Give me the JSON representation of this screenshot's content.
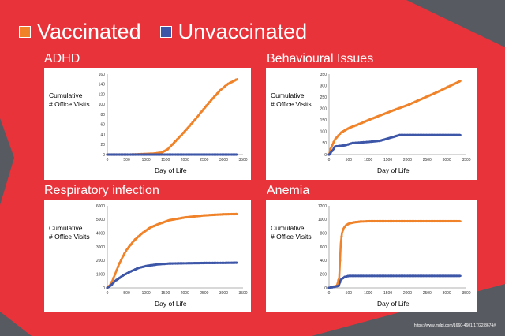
{
  "legend": [
    {
      "label": "Vaccinated",
      "color": "#f0832a"
    },
    {
      "label": "Unvaccinated",
      "color": "#3d56a8"
    }
  ],
  "source": "https://www.mdpi.com/1660-4601/17/22/8674#",
  "colors": {
    "red": "#e8333b",
    "gray": "#575a60",
    "vaccinated": "#f0832a",
    "unvaccinated": "#3d56a8"
  },
  "chart_data": [
    {
      "type": "scatter",
      "title": "ADHD",
      "ylabel": "Cumulative\n# Office Visits",
      "xlabel": "Day of Life",
      "xlim": [
        0,
        3500
      ],
      "xticks": [
        0,
        500,
        1000,
        1500,
        2000,
        2500,
        3000,
        3500
      ],
      "ylim": [
        0,
        160
      ],
      "yticks": [
        0,
        20,
        40,
        60,
        80,
        100,
        120,
        140,
        160
      ],
      "series": [
        {
          "name": "Vaccinated",
          "x": [
            0,
            600,
            900,
            1200,
            1400,
            1550,
            1700,
            1900,
            2100,
            2300,
            2500,
            2700,
            2900,
            3100,
            3350
          ],
          "y": [
            0,
            0,
            1,
            2,
            4,
            10,
            22,
            38,
            55,
            73,
            92,
            110,
            127,
            140,
            150
          ]
        },
        {
          "name": "Unvaccinated",
          "x": [
            0,
            3350
          ],
          "y": [
            0,
            0
          ]
        }
      ]
    },
    {
      "type": "scatter",
      "title": "Behavioural Issues",
      "ylabel": "Cumulative\n# Office Visits",
      "xlabel": "Day of Life",
      "xlim": [
        0,
        3500
      ],
      "xticks": [
        0,
        500,
        1000,
        1500,
        2000,
        2500,
        3000,
        3500
      ],
      "ylim": [
        0,
        350
      ],
      "yticks": [
        0,
        50,
        100,
        150,
        200,
        250,
        300,
        350
      ],
      "series": [
        {
          "name": "Vaccinated",
          "x": [
            0,
            50,
            150,
            300,
            500,
            800,
            1000,
            1300,
            1600,
            2000,
            2400,
            2800,
            3100,
            3350
          ],
          "y": [
            0,
            30,
            65,
            95,
            115,
            135,
            150,
            170,
            190,
            215,
            245,
            275,
            300,
            320
          ]
        },
        {
          "name": "Unvaccinated",
          "x": [
            0,
            100,
            150,
            400,
            600,
            1000,
            1300,
            1500,
            1800,
            3350
          ],
          "y": [
            0,
            20,
            35,
            40,
            50,
            55,
            60,
            70,
            85,
            85
          ]
        }
      ]
    },
    {
      "type": "scatter",
      "title": "Respiratory infection",
      "ylabel": "Cumulative\n# Office Visits",
      "xlabel": "Day of Life",
      "xlim": [
        0,
        3500
      ],
      "xticks": [
        0,
        500,
        1000,
        1500,
        2000,
        2500,
        3000,
        3500
      ],
      "ylim": [
        0,
        6000
      ],
      "yticks": [
        0,
        1000,
        2000,
        3000,
        4000,
        5000,
        6000
      ],
      "series": [
        {
          "name": "Vaccinated",
          "x": [
            0,
            100,
            200,
            300,
            400,
            500,
            700,
            900,
            1100,
            1300,
            1600,
            2000,
            2500,
            3000,
            3350
          ],
          "y": [
            0,
            300,
            1000,
            1700,
            2300,
            2800,
            3500,
            4000,
            4400,
            4650,
            4950,
            5150,
            5300,
            5380,
            5400
          ]
        },
        {
          "name": "Unvaccinated",
          "x": [
            0,
            100,
            200,
            400,
            600,
            800,
            1000,
            1300,
            1600,
            2000,
            2500,
            3000,
            3350
          ],
          "y": [
            0,
            200,
            500,
            900,
            1200,
            1450,
            1600,
            1720,
            1780,
            1800,
            1820,
            1830,
            1840
          ]
        }
      ]
    },
    {
      "type": "scatter",
      "title": "Anemia",
      "ylabel": "Cumulative\n# Office Visits",
      "xlabel": "Day of Life",
      "xlim": [
        0,
        3500
      ],
      "xticks": [
        0,
        500,
        1000,
        1500,
        2000,
        2500,
        3000,
        3500
      ],
      "ylim": [
        0,
        1200
      ],
      "yticks": [
        0,
        200,
        400,
        600,
        800,
        1000,
        1200
      ],
      "series": [
        {
          "name": "Vaccinated",
          "x": [
            0,
            200,
            260,
            280,
            300,
            330,
            370,
            420,
            500,
            650,
            800,
            1000,
            3350
          ],
          "y": [
            0,
            30,
            150,
            400,
            650,
            800,
            870,
            910,
            940,
            960,
            970,
            975,
            975
          ]
        },
        {
          "name": "Unvaccinated",
          "x": [
            0,
            250,
            300,
            400,
            500,
            3350
          ],
          "y": [
            0,
            30,
            120,
            160,
            175,
            175
          ]
        }
      ]
    }
  ]
}
